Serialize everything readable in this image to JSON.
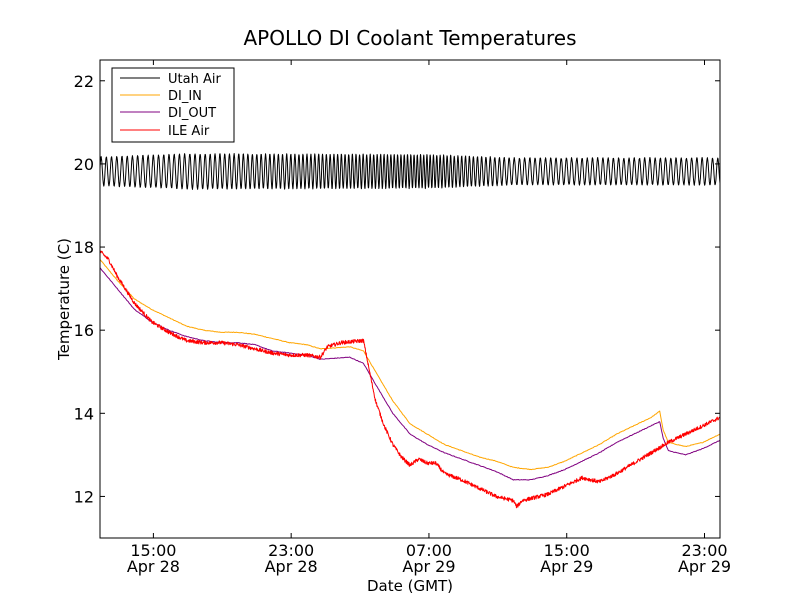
{
  "chart_data": {
    "type": "line",
    "title": "APOLLO DI Coolant Temperatures",
    "xlabel": "Date (GMT)",
    "ylabel": "Temperature (C)",
    "ylim": [
      11,
      22.5
    ],
    "xlim_hours": [
      0,
      36
    ],
    "y_ticks": [
      {
        "value": 12,
        "label": "12"
      },
      {
        "value": 14,
        "label": "14"
      },
      {
        "value": 16,
        "label": "16"
      },
      {
        "value": 18,
        "label": "18"
      },
      {
        "value": 20,
        "label": "20"
      },
      {
        "value": 22,
        "label": "22"
      }
    ],
    "x_ticks": [
      {
        "hour": 3.1,
        "time": "15:00",
        "date": "Apr 28"
      },
      {
        "hour": 11.1,
        "time": "23:00",
        "date": "Apr 28"
      },
      {
        "hour": 19.1,
        "time": "07:00",
        "date": "Apr 29"
      },
      {
        "hour": 27.1,
        "time": "15:00",
        "date": "Apr 29"
      },
      {
        "hour": 35.1,
        "time": "23:00",
        "date": "Apr 29"
      }
    ],
    "legend_position": "top-left",
    "series": [
      {
        "name": "Utah Air",
        "color": "#000000",
        "oscillating": true,
        "x": [
          0,
          5.2,
          18.9,
          24.1,
          36
        ],
        "y": [
          19.82,
          19.82,
          19.82,
          19.82,
          19.82
        ],
        "amplitude": [
          0.34,
          0.42,
          0.4,
          0.32,
          0.32
        ],
        "cycles_per_hour": [
          3.3,
          3.3,
          5.4,
          3.3,
          3.3
        ]
      },
      {
        "name": "DI_IN",
        "color": "#FFA500",
        "x": [
          0,
          1,
          2,
          3,
          4,
          5,
          6,
          7,
          8,
          9,
          10,
          11,
          12,
          12.8,
          14.5,
          15.3,
          16,
          17,
          18,
          19,
          20,
          21,
          22,
          23,
          24,
          25,
          26,
          27,
          28,
          29,
          30,
          31,
          32,
          32.5,
          32.7,
          33,
          34,
          35,
          36
        ],
        "y": [
          17.7,
          17.2,
          16.75,
          16.5,
          16.3,
          16.1,
          16.0,
          15.95,
          15.95,
          15.9,
          15.8,
          15.7,
          15.65,
          15.55,
          15.6,
          15.5,
          15.0,
          14.3,
          13.75,
          13.5,
          13.25,
          13.1,
          12.95,
          12.85,
          12.7,
          12.65,
          12.7,
          12.85,
          13.05,
          13.25,
          13.5,
          13.7,
          13.9,
          14.05,
          13.6,
          13.3,
          13.2,
          13.3,
          13.5
        ]
      },
      {
        "name": "DI_OUT",
        "color": "#800080",
        "x": [
          0,
          1,
          2,
          3,
          4,
          5,
          6,
          7,
          8,
          9,
          10,
          11,
          12,
          12.8,
          14.5,
          15.3,
          16,
          17,
          18,
          19,
          20,
          21,
          22,
          23,
          24,
          25,
          26,
          27,
          28,
          29,
          30,
          31,
          32,
          32.5,
          32.7,
          33,
          34,
          35,
          36
        ],
        "y": [
          17.5,
          17.0,
          16.5,
          16.2,
          16.0,
          15.85,
          15.75,
          15.7,
          15.7,
          15.65,
          15.5,
          15.45,
          15.4,
          15.3,
          15.35,
          15.2,
          14.7,
          14.0,
          13.5,
          13.25,
          13.05,
          12.9,
          12.75,
          12.6,
          12.4,
          12.4,
          12.5,
          12.65,
          12.85,
          13.05,
          13.3,
          13.5,
          13.7,
          13.8,
          13.4,
          13.1,
          13.0,
          13.15,
          13.35
        ]
      },
      {
        "name": "ILE Air",
        "color": "#FF0000",
        "noisy": true,
        "x": [
          0,
          0.5,
          1,
          2,
          3,
          4,
          5,
          6,
          7,
          8,
          9,
          10,
          11,
          12,
          12.8,
          13.2,
          14,
          15.3,
          15.7,
          16,
          16.5,
          17,
          17.5,
          18,
          18.5,
          19,
          19.5,
          20,
          21,
          22,
          23,
          24,
          24.2,
          24.5,
          25,
          26,
          27,
          28,
          29,
          30,
          31,
          32,
          33,
          34,
          35,
          36
        ],
        "y": [
          17.9,
          17.7,
          17.3,
          16.65,
          16.2,
          15.95,
          15.75,
          15.7,
          15.7,
          15.65,
          15.55,
          15.45,
          15.4,
          15.4,
          15.35,
          15.6,
          15.7,
          15.75,
          14.9,
          14.3,
          13.7,
          13.25,
          12.95,
          12.75,
          12.9,
          12.8,
          12.8,
          12.55,
          12.4,
          12.2,
          12.0,
          11.9,
          11.75,
          11.9,
          11.95,
          12.05,
          12.25,
          12.45,
          12.35,
          12.55,
          12.8,
          13.05,
          13.3,
          13.5,
          13.7,
          13.9
        ]
      }
    ]
  }
}
